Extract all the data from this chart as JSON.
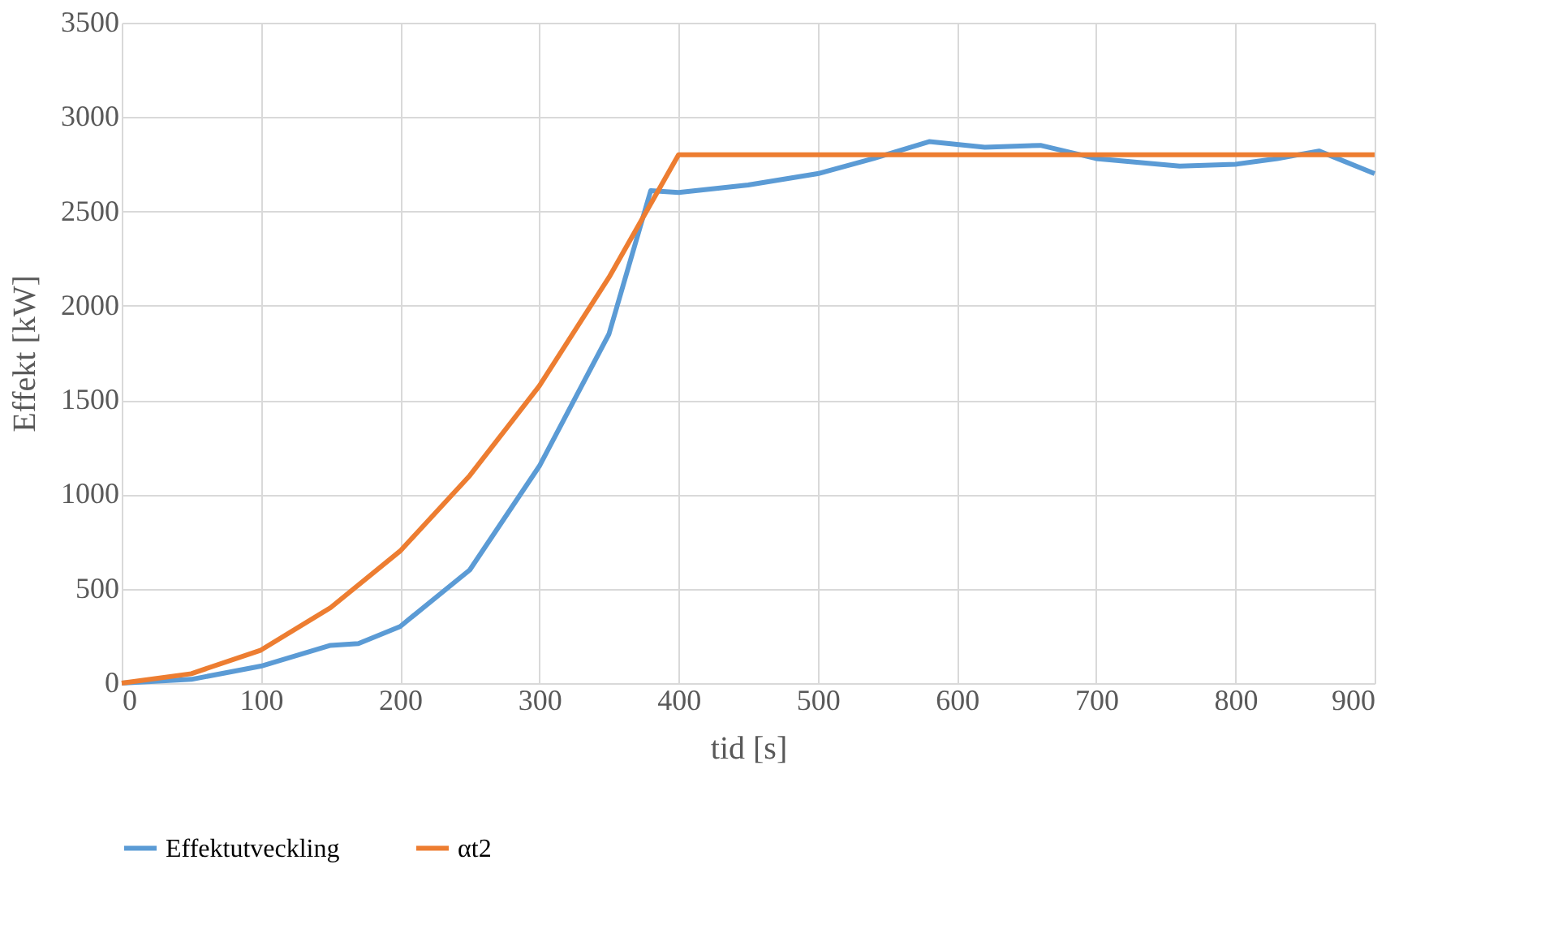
{
  "chart_data": {
    "type": "line",
    "xlabel": "tid [s]",
    "ylabel": "Effekt [kW]",
    "xlim": [
      0,
      900
    ],
    "xticks": [
      0,
      100,
      200,
      300,
      400,
      500,
      600,
      700,
      800,
      900
    ],
    "ylim": [
      0,
      3500
    ],
    "yticks": [
      0,
      500,
      1000,
      1500,
      2000,
      2500,
      3000,
      3500
    ],
    "grid": true,
    "legend": "bottom",
    "marker": "none",
    "line_style": "solid",
    "series": [
      {
        "name": "Effektutveckling",
        "color": "#5b9bd5",
        "x": [
          0,
          50,
          100,
          150,
          170,
          200,
          250,
          300,
          350,
          380,
          400,
          450,
          500,
          540,
          580,
          620,
          660,
          700,
          760,
          800,
          830,
          860,
          900
        ],
        "values": [
          0,
          20,
          90,
          200,
          210,
          300,
          600,
          1150,
          1850,
          2610,
          2600,
          2640,
          2700,
          2780,
          2870,
          2840,
          2850,
          2780,
          2740,
          2750,
          2780,
          2820,
          2700
        ]
      },
      {
        "name": "αt2",
        "color": "#ed7d31",
        "x": [
          0,
          50,
          100,
          150,
          200,
          250,
          300,
          350,
          400,
          900
        ],
        "values": [
          0,
          50,
          175,
          400,
          700,
          1100,
          1575,
          2150,
          2800,
          2800
        ]
      }
    ]
  }
}
